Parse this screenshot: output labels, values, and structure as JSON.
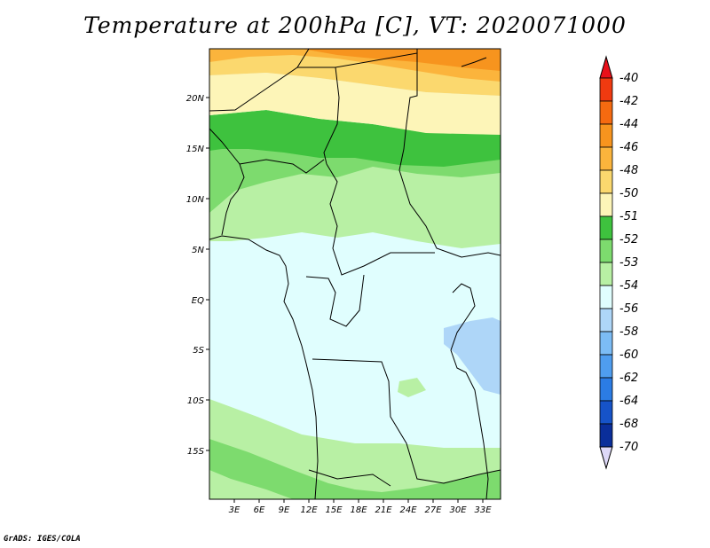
{
  "title": "Temperature at 200hPa [C], VT: 2020071000",
  "credit": "GrADS: IGES/COLA",
  "lat_ticks": [
    "20N",
    "15N",
    "10N",
    "5N",
    "EQ",
    "5S",
    "10S",
    "15S"
  ],
  "lon_ticks": [
    "3E",
    "6E",
    "9E",
    "12E",
    "15E",
    "18E",
    "21E",
    "24E",
    "27E",
    "30E",
    "33E"
  ],
  "colorbar": {
    "labels": [
      "-40",
      "-42",
      "-44",
      "-46",
      "-48",
      "-50",
      "-51",
      "-52",
      "-53",
      "-54",
      "-56",
      "-58",
      "-60",
      "-62",
      "-64",
      "-68",
      "-70"
    ],
    "colors": [
      "#e8101a",
      "#f03a10",
      "#f56a10",
      "#f7941e",
      "#fbb43c",
      "#fbd86e",
      "#fdf5b8",
      "#3ec23e",
      "#7ddb6e",
      "#b8f0a4",
      "#e0fefe",
      "#aed6f8",
      "#7cbcf5",
      "#4f9def",
      "#2b7ce4",
      "#1653c8",
      "#0a2e9a",
      "#05186a"
    ],
    "top_color": "#e8101a",
    "bottom_color": "#ddd8f8"
  }
}
